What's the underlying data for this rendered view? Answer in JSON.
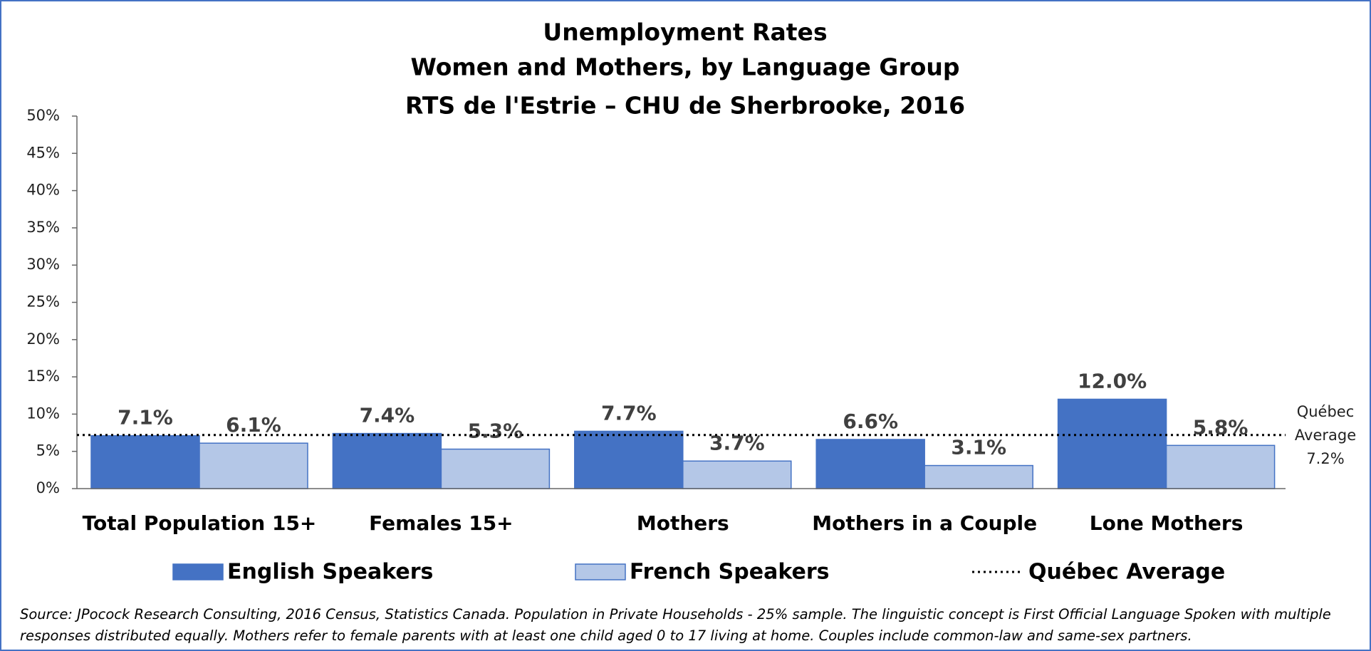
{
  "chart_data": {
    "type": "bar",
    "title": [
      "Unemployment Rates",
      "Women and Mothers, by Language Group",
      "RTS de l'Estrie – CHU de Sherbrooke, 2016"
    ],
    "categories": [
      "Total Population 15+",
      "Females 15+",
      "Mothers",
      "Mothers in a Couple",
      "Lone Mothers"
    ],
    "series": [
      {
        "name": "English Speakers",
        "color": "#4472c4",
        "values": [
          7.1,
          7.4,
          7.7,
          6.6,
          12.0
        ],
        "value_labels": [
          "7.1%",
          "7.4%",
          "7.7%",
          "6.6%",
          "12.0%"
        ]
      },
      {
        "name": "French Speakers",
        "color": "#b4c7e7",
        "values": [
          6.1,
          5.3,
          3.7,
          3.1,
          5.8
        ],
        "value_labels": [
          "6.1%",
          "5.3%",
          "3.7%",
          "3.1%",
          "5.8%"
        ]
      }
    ],
    "reference_line": {
      "name": "Québec Average",
      "value": 7.2,
      "value_label": "7.2%"
    },
    "ylim": [
      0,
      50
    ],
    "yticks": [
      {
        "value": 0,
        "label": "0%"
      },
      {
        "value": 5,
        "label": "5%"
      },
      {
        "value": 10,
        "label": "10%"
      },
      {
        "value": 15,
        "label": "15%"
      },
      {
        "value": 20,
        "label": "20%"
      },
      {
        "value": 25,
        "label": "25%"
      },
      {
        "value": 30,
        "label": "30%"
      },
      {
        "value": 35,
        "label": "35%"
      },
      {
        "value": 40,
        "label": "40%"
      },
      {
        "value": 45,
        "label": "45%"
      },
      {
        "value": 50,
        "label": "50%"
      }
    ],
    "grid": false,
    "legend": "bottom",
    "source": "Source: JPocock Research Consulting, 2016 Census, Statistics Canada. Population in Private Households - 25% sample. The linguistic concept is First Official Language Spoken with multiple responses distributed equally. Mothers refer to female parents with at least one child aged 0 to 17 living at home. Couples include common-law and same-sex partners."
  }
}
